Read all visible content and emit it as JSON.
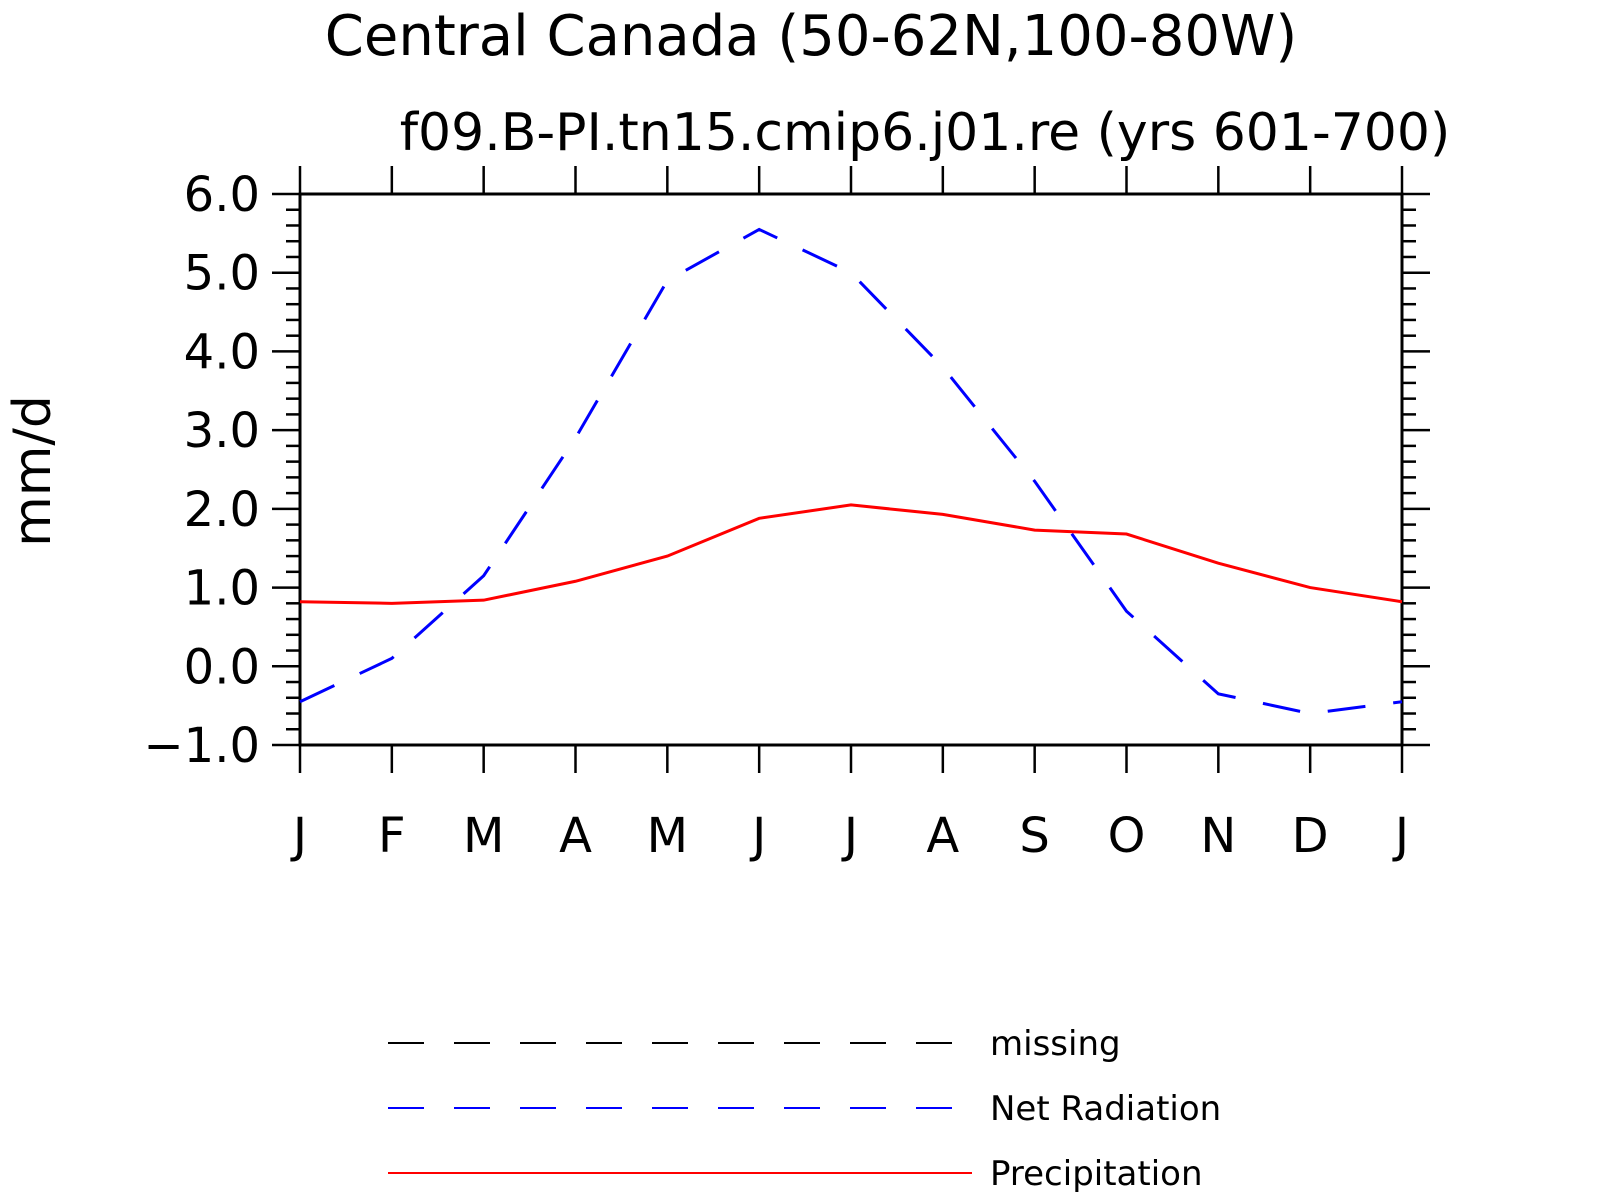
{
  "chart_data": {
    "type": "line",
    "title": "Central Canada (50-62N,100-80W)",
    "subtitle": "f09.B-PI.tn15.cmip6.j01.re (yrs 601-700)",
    "xlabel": "",
    "ylabel": "mm/d",
    "categories": [
      "J",
      "F",
      "M",
      "A",
      "M",
      "J",
      "J",
      "A",
      "S",
      "O",
      "N",
      "D",
      "J"
    ],
    "ylim": [
      -1.0,
      6.0
    ],
    "yticks": [
      "−1.0",
      "0.0",
      "1.0",
      "2.0",
      "3.0",
      "4.0",
      "5.0",
      "6.0"
    ],
    "grid": false,
    "legend_position": "bottom",
    "series": [
      {
        "name": "Net Radiation",
        "color": "#0000ff",
        "dash": "dashed",
        "values": [
          -0.45,
          0.1,
          1.15,
          2.9,
          4.9,
          5.55,
          5.0,
          3.8,
          2.35,
          0.7,
          -0.35,
          -0.6,
          -0.45
        ]
      },
      {
        "name": "Precipitation",
        "color": "#ff0000",
        "dash": "solid",
        "values": [
          0.82,
          0.8,
          0.84,
          1.08,
          1.4,
          1.88,
          2.05,
          1.93,
          1.73,
          1.68,
          1.31,
          1.0,
          0.82
        ]
      }
    ],
    "legend": [
      {
        "label": "missing",
        "color": "#000000",
        "dash": "dashed"
      },
      {
        "label": "Net Radiation",
        "color": "#0000ff",
        "dash": "dashed"
      },
      {
        "label": "Precipitation",
        "color": "#ff0000",
        "dash": "solid"
      }
    ]
  }
}
